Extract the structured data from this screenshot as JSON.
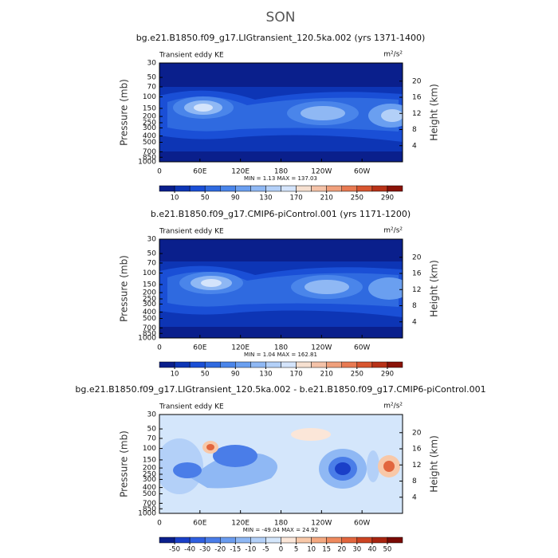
{
  "title": "SON",
  "chart_data": [
    {
      "type": "contour",
      "title": "bg.e21.B1850.f09_g17.LIGtransient_120.5ka.002 (yrs 1371-1400)",
      "subtitle": "Transient eddy KE",
      "units": "m²/s²",
      "ylabel": "Pressure (mb)",
      "y2label": "Height (km)",
      "log_y": true,
      "xlim": [
        0,
        360
      ],
      "xticks": [
        0,
        {
          "value": 60,
          "label": "60E"
        },
        {
          "value": 120,
          "label": "120E"
        },
        180,
        {
          "value": 240,
          "label": "120W"
        },
        {
          "value": 300,
          "label": "60W"
        }
      ],
      "ylim": [
        1000,
        30
      ],
      "yticks": [
        30,
        50,
        70,
        100,
        150,
        200,
        250,
        300,
        400,
        500,
        700,
        850,
        1000
      ],
      "y2lim": [
        0,
        24.5
      ],
      "y2ticks": [
        4,
        8,
        12,
        16,
        20
      ],
      "stats": "MIN =    1.13   MAX = 137.03",
      "colorbar": {
        "ticks": [
          10,
          50,
          90,
          130,
          170,
          210,
          250,
          290
        ],
        "colors": [
          "#0a1f8c",
          "#0d35b5",
          "#1a4fd6",
          "#2f6ae0",
          "#4a85ea",
          "#6a9ff0",
          "#8fb8f4",
          "#b3d0f8",
          "#d4e4fb",
          "#f6e0d0",
          "#f4c2a8",
          "#f0a07c",
          "#e87a52",
          "#d85630",
          "#b83218",
          "#8a1308"
        ]
      }
    },
    {
      "type": "contour",
      "title": "b.e21.B1850.f09_g17.CMIP6-piControl.001 (yrs 1171-1200)",
      "subtitle": "Transient eddy KE",
      "units": "m²/s²",
      "ylabel": "Pressure (mb)",
      "y2label": "Height (km)",
      "log_y": true,
      "xlim": [
        0,
        360
      ],
      "xticks": [
        0,
        {
          "value": 60,
          "label": "60E"
        },
        {
          "value": 120,
          "label": "120E"
        },
        180,
        {
          "value": 240,
          "label": "120W"
        },
        {
          "value": 300,
          "label": "60W"
        }
      ],
      "ylim": [
        1000,
        30
      ],
      "yticks": [
        30,
        50,
        70,
        100,
        150,
        200,
        250,
        300,
        400,
        500,
        700,
        850,
        1000
      ],
      "y2lim": [
        0,
        24.5
      ],
      "y2ticks": [
        4,
        8,
        12,
        16,
        20
      ],
      "stats": "MIN =    1.04   MAX = 162.81",
      "colorbar": {
        "ticks": [
          10,
          50,
          90,
          130,
          170,
          210,
          250,
          290
        ],
        "colors": [
          "#0a1f8c",
          "#0d35b5",
          "#1a4fd6",
          "#2f6ae0",
          "#4a85ea",
          "#6a9ff0",
          "#8fb8f4",
          "#b3d0f8",
          "#d4e4fb",
          "#f6e0d0",
          "#f4c2a8",
          "#f0a07c",
          "#e87a52",
          "#d85630",
          "#b83218",
          "#8a1308"
        ]
      }
    },
    {
      "type": "contour",
      "title": "bg.e21.B1850.f09_g17.LIGtransient_120.5ka.002 - b.e21.B1850.f09_g17.CMIP6-piControl.001",
      "subtitle": "Transient eddy KE",
      "units": "m²/s²",
      "ylabel": "Pressure (mb)",
      "y2label": "Height (km)",
      "log_y": true,
      "xlim": [
        0,
        360
      ],
      "xticks": [
        0,
        {
          "value": 60,
          "label": "60E"
        },
        {
          "value": 120,
          "label": "120E"
        },
        180,
        {
          "value": 240,
          "label": "120W"
        },
        {
          "value": 300,
          "label": "60W"
        }
      ],
      "ylim": [
        1000,
        30
      ],
      "yticks": [
        30,
        50,
        70,
        100,
        150,
        200,
        250,
        300,
        400,
        500,
        700,
        850,
        1000
      ],
      "y2lim": [
        0,
        24.5
      ],
      "y2ticks": [
        4,
        8,
        12,
        16,
        20
      ],
      "stats": "MIN = -49.04   MAX =  24.92",
      "colorbar": {
        "ticks": [
          -50,
          -40,
          -30,
          -20,
          -15,
          -10,
          -5,
          0,
          5,
          10,
          15,
          20,
          30,
          40,
          50
        ],
        "colors": [
          "#0a1f8c",
          "#1a3fc8",
          "#2f5fe0",
          "#4a7de8",
          "#6a9cef",
          "#8fb8f4",
          "#b3d0f8",
          "#d4e6fb",
          "#fbe6d8",
          "#f8c8a8",
          "#f4a880",
          "#ee8a5e",
          "#e2663e",
          "#cc4422",
          "#a82410",
          "#7a0a04"
        ]
      }
    }
  ]
}
